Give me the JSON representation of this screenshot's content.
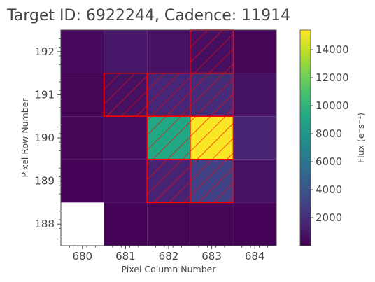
{
  "chart_data": {
    "type": "heatmap",
    "title": "Target ID: 6922244, Cadence: 11914",
    "xlabel": "Pixel Column Number",
    "ylabel": "Pixel Row Number",
    "x_categories": [
      "680",
      "681",
      "682",
      "683",
      "684"
    ],
    "y_categories": [
      "188",
      "189",
      "190",
      "191",
      "192"
    ],
    "xlim": [
      679.5,
      684.5
    ],
    "ylim": [
      187.5,
      192.5
    ],
    "colormap": "viridis",
    "colorbar": {
      "label": "Flux (e⁻s⁻¹)",
      "ticks": [
        "2000",
        "4000",
        "6000",
        "8000",
        "10000",
        "12000",
        "14000"
      ],
      "range": [
        0,
        15400
      ]
    },
    "cells": [
      {
        "column": 680,
        "row": 192,
        "flux": 300
      },
      {
        "column": 681,
        "row": 192,
        "flux": 1000
      },
      {
        "column": 682,
        "row": 192,
        "flux": 700
      },
      {
        "column": 683,
        "row": 192,
        "flux": 600
      },
      {
        "column": 684,
        "row": 192,
        "flux": 200
      },
      {
        "column": 680,
        "row": 191,
        "flux": 200
      },
      {
        "column": 681,
        "row": 191,
        "flux": 700
      },
      {
        "column": 682,
        "row": 191,
        "flux": 1600
      },
      {
        "column": 683,
        "row": 191,
        "flux": 1900
      },
      {
        "column": 684,
        "row": 191,
        "flux": 800
      },
      {
        "column": 680,
        "row": 190,
        "flux": 200
      },
      {
        "column": 681,
        "row": 190,
        "flux": 500
      },
      {
        "column": 682,
        "row": 190,
        "flux": 9200
      },
      {
        "column": 683,
        "row": 190,
        "flux": 15300
      },
      {
        "column": 684,
        "row": 190,
        "flux": 1500
      },
      {
        "column": 680,
        "row": 189,
        "flux": 100
      },
      {
        "column": 681,
        "row": 189,
        "flux": 300
      },
      {
        "column": 682,
        "row": 189,
        "flux": 1500
      },
      {
        "column": 683,
        "row": 189,
        "flux": 3000
      },
      {
        "column": 684,
        "row": 189,
        "flux": 700
      },
      {
        "column": 680,
        "row": 188,
        "flux": null
      },
      {
        "column": 681,
        "row": 188,
        "flux": 100
      },
      {
        "column": 682,
        "row": 188,
        "flux": 200
      },
      {
        "column": 683,
        "row": 188,
        "flux": 200
      },
      {
        "column": 684,
        "row": 188,
        "flux": 100
      }
    ],
    "aperture_mask": [
      {
        "column": 683,
        "row": 192
      },
      {
        "column": 681,
        "row": 191
      },
      {
        "column": 682,
        "row": 191
      },
      {
        "column": 683,
        "row": 191
      },
      {
        "column": 682,
        "row": 190
      },
      {
        "column": 683,
        "row": 190
      },
      {
        "column": 682,
        "row": 189
      },
      {
        "column": 683,
        "row": 189
      }
    ],
    "mask_color": "#ff0000",
    "grid": false
  }
}
